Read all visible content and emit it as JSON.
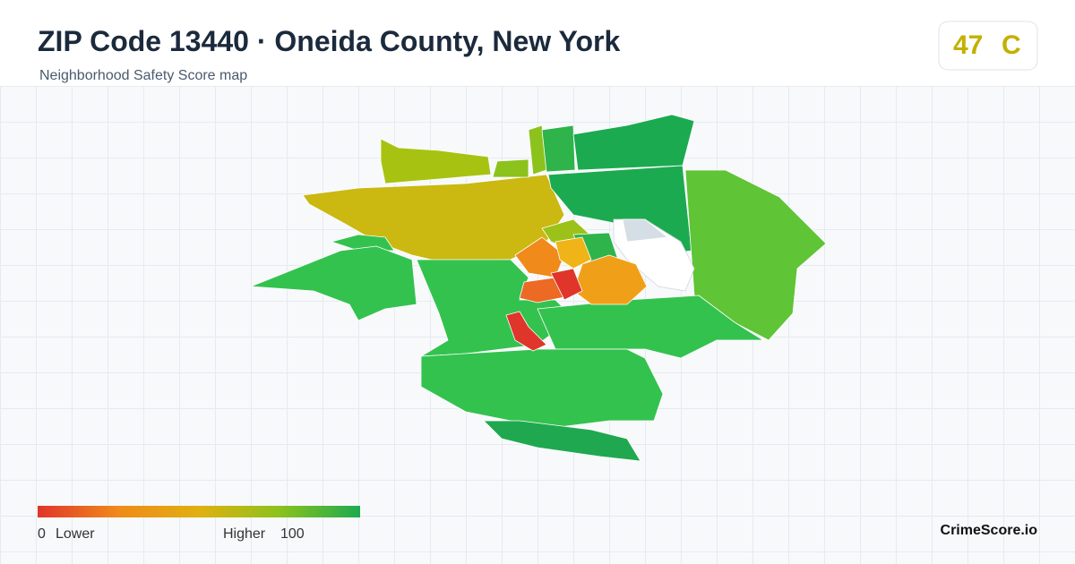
{
  "header": {
    "title": "ZIP Code 13440 · Oneida County, New York",
    "subtitle": "Neighborhood Safety Score map"
  },
  "badge": {
    "score": 47,
    "grade": "C"
  },
  "legend": {
    "min": 0,
    "min_label": "Lower",
    "max_label": "Higher",
    "max": 100
  },
  "footer": {
    "brand": "CrimeScore.io"
  }
}
